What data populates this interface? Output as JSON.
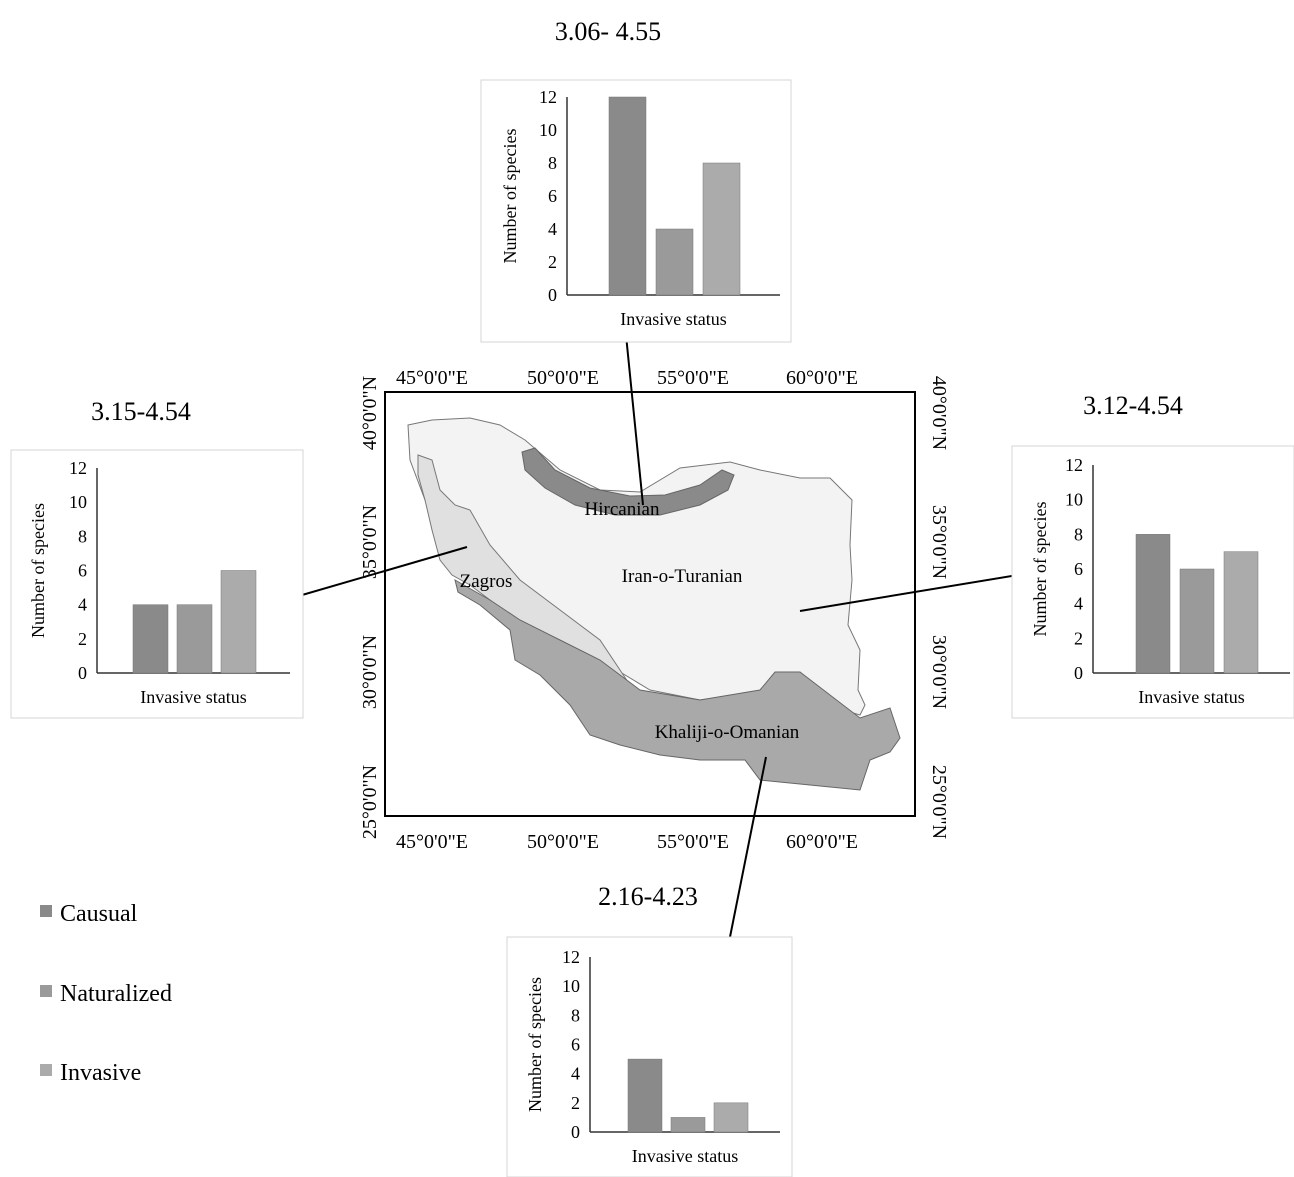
{
  "colors": {
    "causual": "#8a8a8a",
    "naturalized": "#9a9a9a",
    "invasive": "#ababab",
    "iran_o_turanian_fill": "#f3f3f3",
    "zagros_fill": "#e0e0e0",
    "hircanian_fill": "#8a8a8a",
    "khaliji_fill": "#a9a9a9"
  },
  "legend": {
    "causual": "Causual",
    "naturalized": "Naturalized",
    "invasive": "Invasive"
  },
  "map": {
    "x_ticks": [
      "45°0'0\"E",
      "50°0'0\"E",
      "55°0'0\"E",
      "60°0'0\"E"
    ],
    "y_ticks": [
      "40°0'0\"N",
      "35°0'0\"N",
      "30°0'0\"N",
      "25°0'0\"N"
    ],
    "regions": {
      "hircanian": "Hircanian",
      "zagros": "Zagros",
      "iran_o_turanian": "Iran-o-Turanian",
      "khaliji_o_omanian": "Khaliji-o-Omanian"
    }
  },
  "chart_data": [
    {
      "type": "bar",
      "title": "3.06- 4.55",
      "xlabel": "Invasive status",
      "ylabel": "Number of species",
      "ylim": [
        0,
        12
      ],
      "yticks": [
        0,
        2,
        4,
        6,
        8,
        10,
        12
      ],
      "categories": [
        "Causual",
        "Naturalized",
        "Invasive"
      ],
      "values": [
        12,
        4,
        8
      ]
    },
    {
      "type": "bar",
      "title": "3.15-4.54",
      "xlabel": "Invasive status",
      "ylabel": "Number of species",
      "ylim": [
        0,
        12
      ],
      "yticks": [
        0,
        2,
        4,
        6,
        8,
        10,
        12
      ],
      "categories": [
        "Causual",
        "Naturalized",
        "Invasive"
      ],
      "values": [
        4,
        4,
        6
      ]
    },
    {
      "type": "bar",
      "title": "3.12-4.54",
      "xlabel": "Invasive status",
      "ylabel": "Number of species",
      "ylim": [
        0,
        12
      ],
      "yticks": [
        0,
        2,
        4,
        6,
        8,
        10,
        12
      ],
      "categories": [
        "Causual",
        "Naturalized",
        "Invasive"
      ],
      "values": [
        8,
        6,
        7
      ]
    },
    {
      "type": "bar",
      "title": "2.16-4.23",
      "xlabel": "Invasive status",
      "ylabel": "Number of species",
      "ylim": [
        0,
        12
      ],
      "yticks": [
        0,
        2,
        4,
        6,
        8,
        10,
        12
      ],
      "categories": [
        "Causual",
        "Naturalized",
        "Invasive"
      ],
      "values": [
        5,
        1,
        2
      ]
    }
  ]
}
